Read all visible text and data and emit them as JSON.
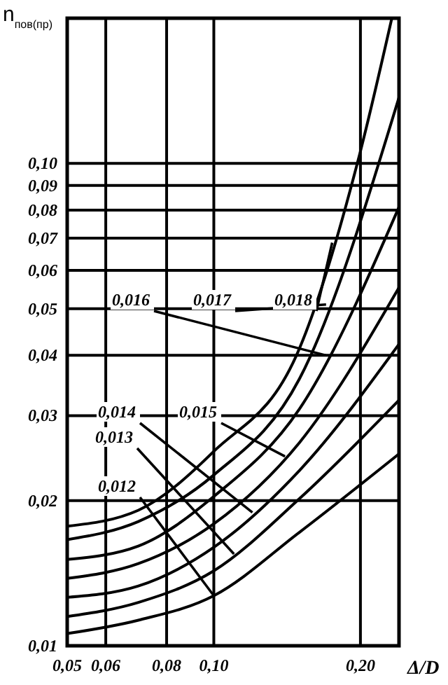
{
  "chart_data": {
    "type": "line",
    "xlabel": "Δ/D",
    "ylabel": "n$_{пов(пр)}$",
    "log": "xy",
    "grid": true,
    "line_style": "solid",
    "marker": "none",
    "xlim": [
      0.05,
      0.24
    ],
    "ylim": [
      0.01,
      0.2
    ],
    "xticks": [
      {
        "value": 0.05,
        "label": "0,05"
      },
      {
        "value": 0.06,
        "label": "0,06"
      },
      {
        "value": 0.08,
        "label": "0,08"
      },
      {
        "value": 0.1,
        "label": "0,10"
      },
      {
        "value": 0.2,
        "label": "0,20"
      }
    ],
    "yticks": [
      {
        "value": 0.01,
        "label": "0,01"
      },
      {
        "value": 0.02,
        "label": "0,02"
      },
      {
        "value": 0.03,
        "label": "0,03"
      },
      {
        "value": 0.04,
        "label": "0,04"
      },
      {
        "value": 0.05,
        "label": "0,05"
      },
      {
        "value": 0.06,
        "label": "0,06"
      },
      {
        "value": 0.07,
        "label": "0,07"
      },
      {
        "value": 0.08,
        "label": "0,08"
      },
      {
        "value": 0.09,
        "label": "0,09"
      },
      {
        "value": 0.1,
        "label": "0,10"
      }
    ],
    "series": [
      {
        "color": "#000000",
        "x": [
          0.05,
          0.07,
          0.1,
          0.15,
          0.24
        ],
        "values": [
          0.0106,
          0.0113,
          0.0127,
          0.0172,
          0.025
        ]
      },
      {
        "color": "#000000",
        "x": [
          0.05,
          0.07,
          0.1,
          0.15,
          0.24
        ],
        "values": [
          0.0115,
          0.0123,
          0.0143,
          0.0202,
          0.0323
        ]
      },
      {
        "color": "#000000",
        "x": [
          0.05,
          0.07,
          0.1,
          0.15,
          0.24
        ],
        "values": [
          0.0126,
          0.0133,
          0.016,
          0.0231,
          0.0422
        ]
      },
      {
        "color": "#000000",
        "x": [
          0.05,
          0.07,
          0.1,
          0.15,
          0.24
        ],
        "values": [
          0.0138,
          0.0148,
          0.0179,
          0.0264,
          0.0553
        ]
      },
      {
        "color": "#000000",
        "x": [
          0.05,
          0.07,
          0.1,
          0.15,
          0.24
        ],
        "values": [
          0.0151,
          0.0161,
          0.0204,
          0.031,
          0.0812
        ]
      },
      {
        "color": "#000000",
        "x": [
          0.05,
          0.07,
          0.1,
          0.15,
          0.24
        ],
        "values": [
          0.0166,
          0.0181,
          0.0226,
          0.0358,
          0.137
        ]
      },
      {
        "color": "#000000",
        "x": [
          0.05,
          0.07,
          0.1,
          0.15,
          0.2,
          0.232
        ],
        "values": [
          0.0177,
          0.0191,
          0.0253,
          0.0414,
          0.106,
          0.2
        ]
      }
    ],
    "annotations": [
      {
        "text": "0,012",
        "x": 0.1,
        "y": 0.0127
      },
      {
        "text": "0,013",
        "x": 0.11,
        "y": 0.0155
      },
      {
        "text": "0,014",
        "x": 0.12,
        "y": 0.0189
      },
      {
        "text": "0,015",
        "x": 0.14,
        "y": 0.0247
      },
      {
        "text": "0,016",
        "x": 0.17,
        "y": 0.04
      },
      {
        "text": "0,017",
        "x": 0.17,
        "y": 0.051
      },
      {
        "text": "0,018",
        "x": 0.175,
        "y": 0.0685
      }
    ]
  }
}
